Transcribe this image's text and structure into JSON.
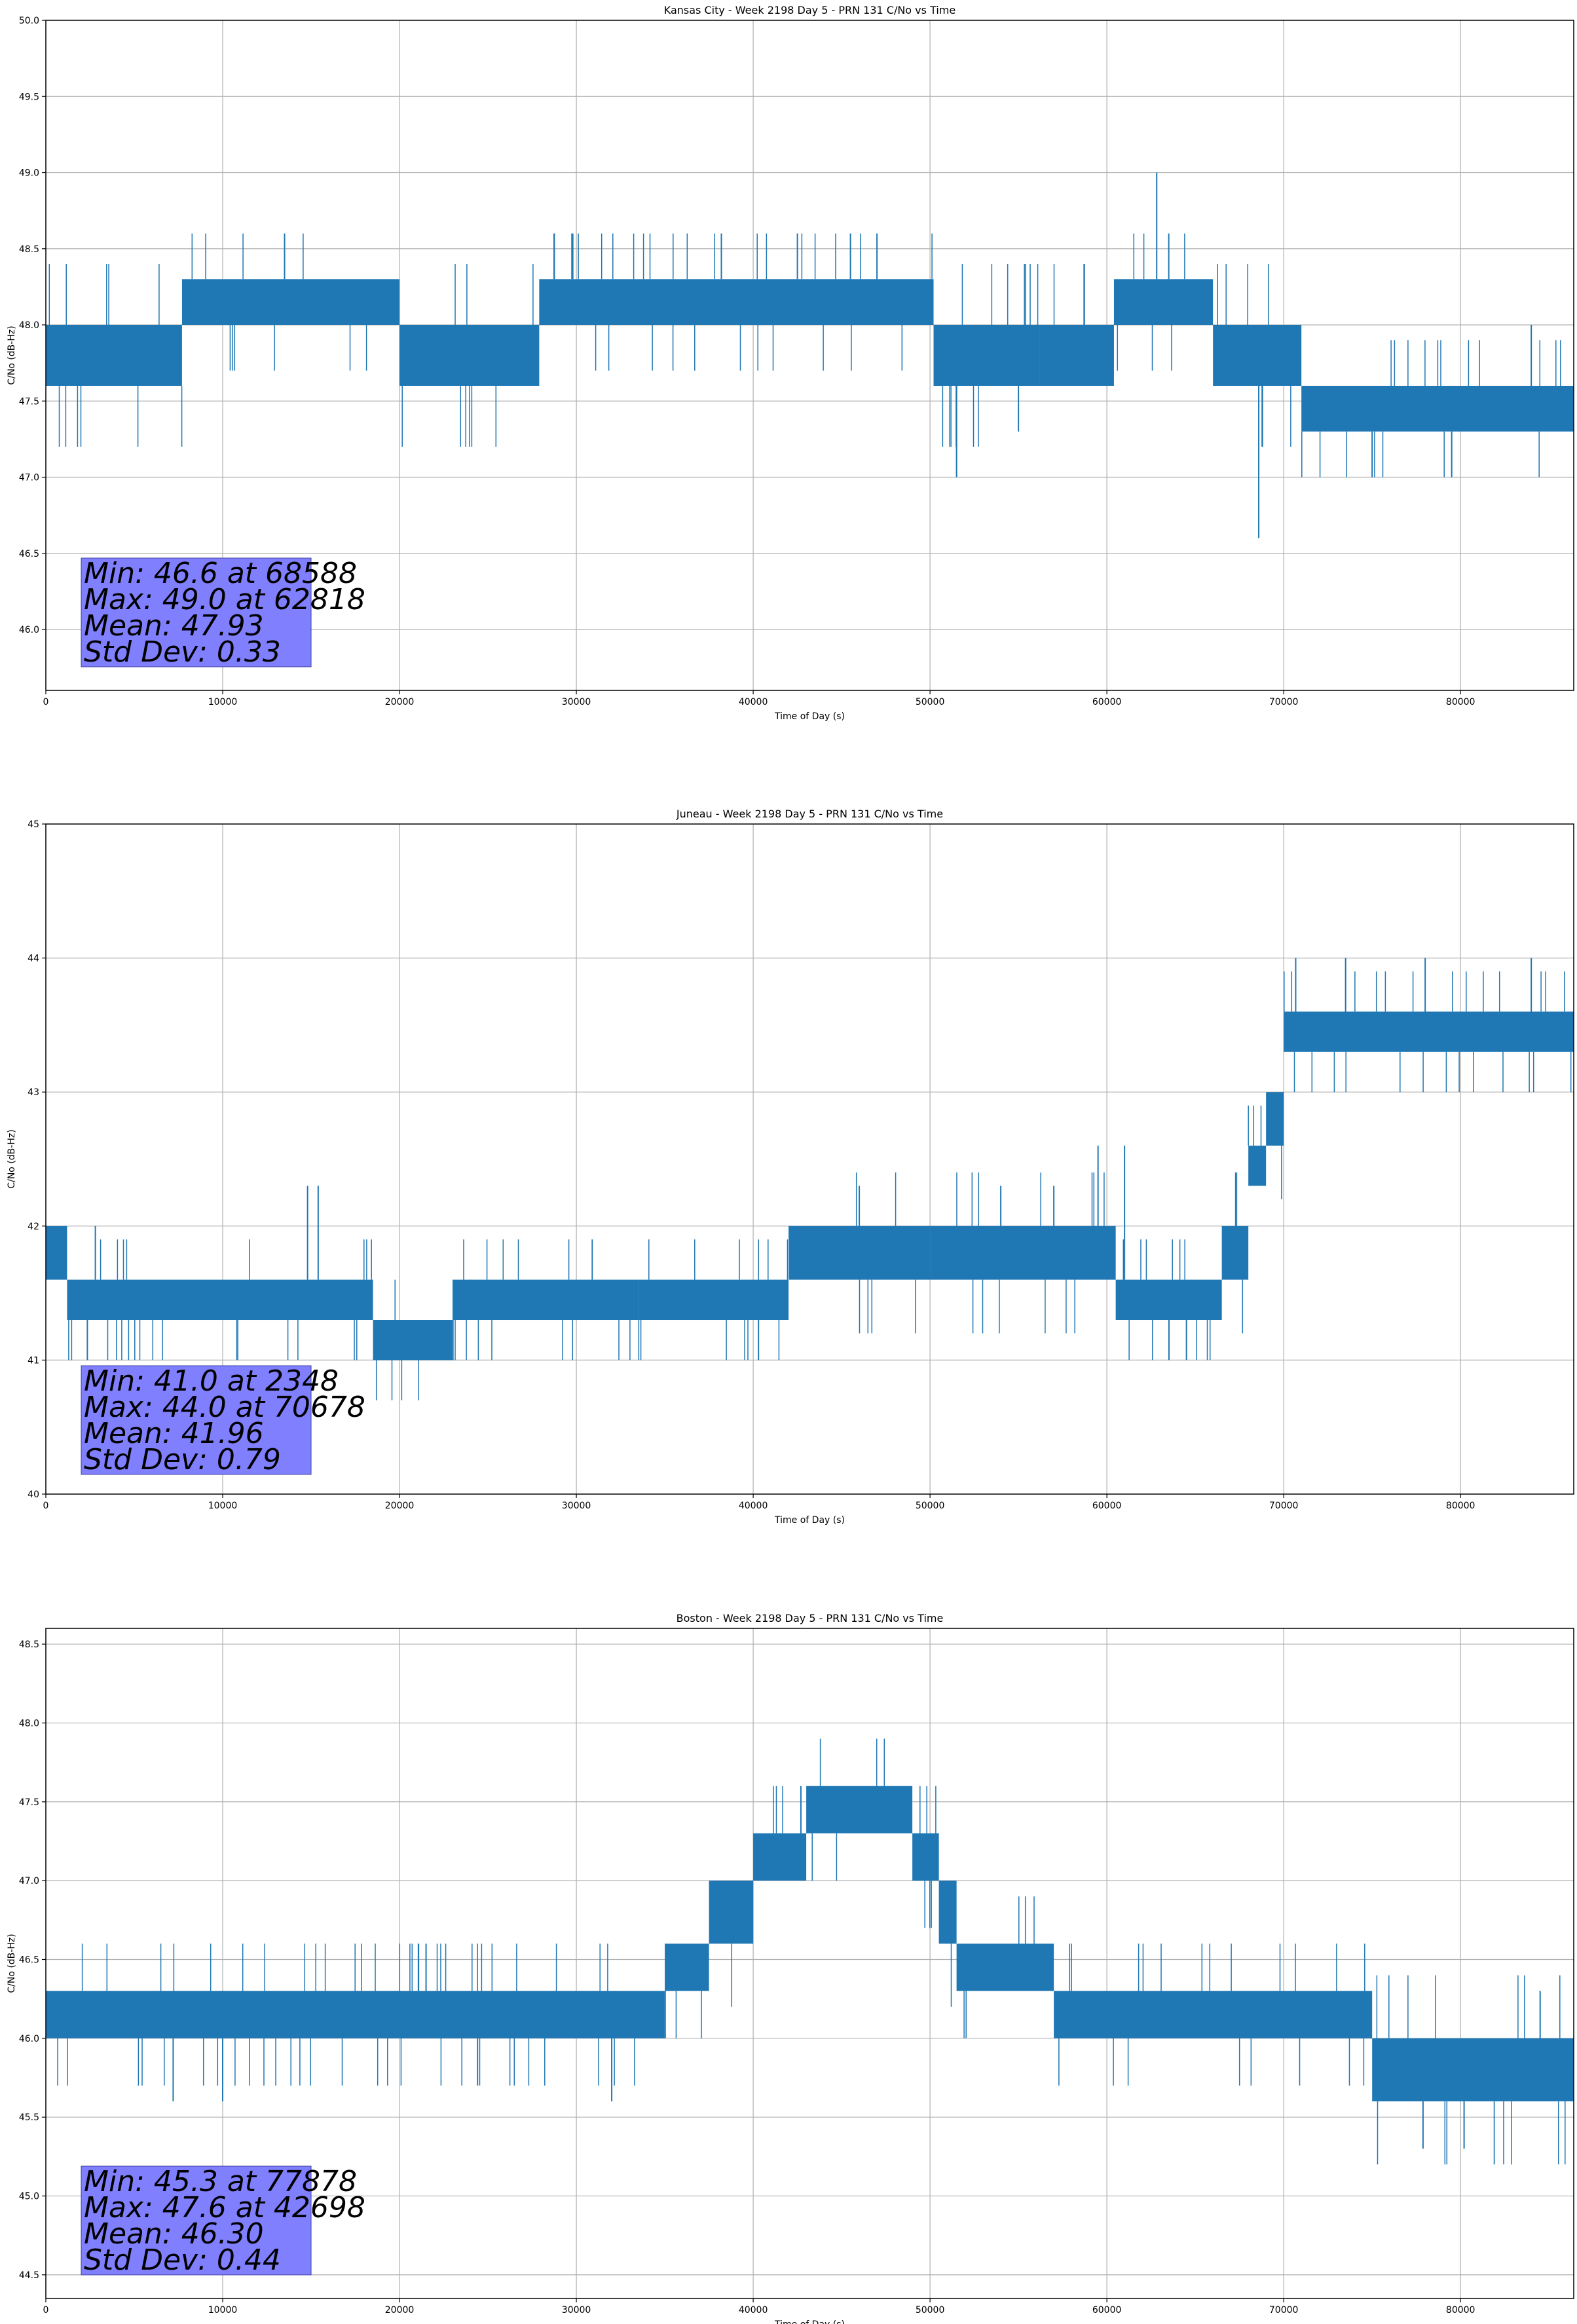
{
  "colors": {
    "series": "#1f77b4",
    "grid": "#b0b0b0",
    "stats_box": "#8080ff",
    "axes": "#000000"
  },
  "chart_data": [
    {
      "type": "line",
      "title": "Kansas City - Week 2198 Day 5 - PRN 131 C/No vs Time",
      "xlabel": "Time of Day (s)",
      "ylabel": "C/No (dB-Hz)",
      "xlim": [
        0,
        86400
      ],
      "ylim": [
        45.6,
        50.0
      ],
      "xticks": [
        0,
        10000,
        20000,
        30000,
        40000,
        50000,
        60000,
        70000,
        80000
      ],
      "xtick_labels": [
        "0",
        "10000",
        "20000",
        "30000",
        "40000",
        "50000",
        "60000",
        "70000",
        "80000"
      ],
      "yticks": [
        46.0,
        46.5,
        47.0,
        47.5,
        48.0,
        48.5,
        49.0,
        49.5,
        50.0
      ],
      "ytick_labels": [
        "46.0",
        "46.5",
        "47.0",
        "47.5",
        "48.0",
        "48.5",
        "49.0",
        "49.5",
        "50.0"
      ],
      "grid": true,
      "stats": [
        "Min: 46.6 at 68588",
        "Max: 49.0 at 62818",
        "Mean: 47.93",
        "Std Dev: 0.33"
      ],
      "band_segments": [
        {
          "x0": 0,
          "x1": 7700,
          "lo": 47.6,
          "hi": 48.0
        },
        {
          "x0": 7700,
          "x1": 20000,
          "lo": 48.0,
          "hi": 48.3
        },
        {
          "x0": 20000,
          "x1": 27900,
          "lo": 47.6,
          "hi": 48.0
        },
        {
          "x0": 27900,
          "x1": 50200,
          "lo": 48.0,
          "hi": 48.3
        },
        {
          "x0": 50200,
          "x1": 56200,
          "lo": 47.6,
          "hi": 48.0
        },
        {
          "x0": 56200,
          "x1": 60400,
          "lo": 47.6,
          "hi": 48.0
        },
        {
          "x0": 60400,
          "x1": 66000,
          "lo": 48.0,
          "hi": 48.3
        },
        {
          "x0": 66000,
          "x1": 71000,
          "lo": 47.6,
          "hi": 48.0
        },
        {
          "x0": 71000,
          "x1": 86400,
          "lo": 47.3,
          "hi": 47.6
        }
      ],
      "spikes": [
        {
          "x": 13500,
          "y": 48.6
        },
        {
          "x": 29800,
          "y": 48.6
        },
        {
          "x": 38200,
          "y": 48.6
        },
        {
          "x": 42500,
          "y": 48.6
        },
        {
          "x": 45500,
          "y": 48.6
        },
        {
          "x": 47000,
          "y": 48.6
        },
        {
          "x": 51500,
          "y": 47.0
        },
        {
          "x": 55000,
          "y": 47.3
        },
        {
          "x": 62818,
          "y": 49.0
        },
        {
          "x": 63500,
          "y": 48.6
        },
        {
          "x": 68588,
          "y": 46.6
        },
        {
          "x": 75000,
          "y": 47.0
        },
        {
          "x": 79500,
          "y": 47.0
        },
        {
          "x": 84000,
          "y": 48.0
        }
      ]
    },
    {
      "type": "line",
      "title": "Juneau - Week 2198 Day 5 - PRN 131 C/No vs Time",
      "xlabel": "Time of Day (s)",
      "ylabel": "C/No (dB-Hz)",
      "xlim": [
        0,
        86400
      ],
      "ylim": [
        40,
        45
      ],
      "xticks": [
        0,
        10000,
        20000,
        30000,
        40000,
        50000,
        60000,
        70000,
        80000
      ],
      "xtick_labels": [
        "0",
        "10000",
        "20000",
        "30000",
        "40000",
        "50000",
        "60000",
        "70000",
        "80000"
      ],
      "yticks": [
        40,
        41,
        42,
        43,
        44,
        45
      ],
      "ytick_labels": [
        "40",
        "41",
        "42",
        "43",
        "44",
        "45"
      ],
      "grid": true,
      "stats": [
        "Min: 41.0 at 2348",
        "Max: 44.0 at 70678",
        "Mean: 41.96",
        "Std Dev: 0.79"
      ],
      "band_segments": [
        {
          "x0": 0,
          "x1": 1200,
          "lo": 41.6,
          "hi": 42.0
        },
        {
          "x0": 1200,
          "x1": 18500,
          "lo": 41.3,
          "hi": 41.6
        },
        {
          "x0": 18500,
          "x1": 23000,
          "lo": 41.0,
          "hi": 41.3
        },
        {
          "x0": 23000,
          "x1": 33500,
          "lo": 41.3,
          "hi": 41.6
        },
        {
          "x0": 33500,
          "x1": 42000,
          "lo": 41.3,
          "hi": 41.6
        },
        {
          "x0": 42000,
          "x1": 50000,
          "lo": 41.6,
          "hi": 42.0
        },
        {
          "x0": 50000,
          "x1": 60500,
          "lo": 41.6,
          "hi": 42.0
        },
        {
          "x0": 60500,
          "x1": 66500,
          "lo": 41.3,
          "hi": 41.6
        },
        {
          "x0": 66500,
          "x1": 68000,
          "lo": 41.6,
          "hi": 42.0
        },
        {
          "x0": 68000,
          "x1": 69000,
          "lo": 42.3,
          "hi": 42.6
        },
        {
          "x0": 69000,
          "x1": 70000,
          "lo": 42.6,
          "hi": 43.0
        },
        {
          "x0": 70000,
          "x1": 86400,
          "lo": 43.3,
          "hi": 43.6
        }
      ],
      "spikes": [
        {
          "x": 2348,
          "y": 41.0
        },
        {
          "x": 2800,
          "y": 42.0
        },
        {
          "x": 14800,
          "y": 42.3
        },
        {
          "x": 15400,
          "y": 42.3
        },
        {
          "x": 24000,
          "y": 41.6
        },
        {
          "x": 40300,
          "y": 41.0
        },
        {
          "x": 46000,
          "y": 42.3
        },
        {
          "x": 54000,
          "y": 42.3
        },
        {
          "x": 57000,
          "y": 42.3
        },
        {
          "x": 59500,
          "y": 42.6
        },
        {
          "x": 61000,
          "y": 42.6
        },
        {
          "x": 64500,
          "y": 41.0
        },
        {
          "x": 70678,
          "y": 44.0
        },
        {
          "x": 73500,
          "y": 44.0
        },
        {
          "x": 78000,
          "y": 44.0
        },
        {
          "x": 84000,
          "y": 44.0
        }
      ]
    },
    {
      "type": "line",
      "title": "Boston - Week 2198 Day 5 - PRN 131 C/No vs Time",
      "xlabel": "Time of Day (s)",
      "ylabel": "C/No (dB-Hz)",
      "xlim": [
        0,
        86400
      ],
      "ylim": [
        44.35,
        48.6
      ],
      "xticks": [
        0,
        10000,
        20000,
        30000,
        40000,
        50000,
        60000,
        70000,
        80000
      ],
      "xtick_labels": [
        "0",
        "10000",
        "20000",
        "30000",
        "40000",
        "50000",
        "60000",
        "70000",
        "80000"
      ],
      "yticks": [
        44.5,
        45.0,
        45.5,
        46.0,
        46.5,
        47.0,
        47.5,
        48.0,
        48.5
      ],
      "ytick_labels": [
        "44.5",
        "45.0",
        "45.5",
        "46.0",
        "46.5",
        "47.0",
        "47.5",
        "48.0",
        "48.5"
      ],
      "grid": true,
      "stats": [
        "Min: 45.3 at 77878",
        "Max: 47.6 at 42698",
        "Mean: 46.30",
        "Std Dev: 0.44"
      ],
      "band_segments": [
        {
          "x0": 0,
          "x1": 35000,
          "lo": 46.0,
          "hi": 46.3
        },
        {
          "x0": 35000,
          "x1": 37500,
          "lo": 46.3,
          "hi": 46.6
        },
        {
          "x0": 37500,
          "x1": 40000,
          "lo": 46.6,
          "hi": 47.0
        },
        {
          "x0": 40000,
          "x1": 43000,
          "lo": 47.0,
          "hi": 47.3
        },
        {
          "x0": 43000,
          "x1": 49000,
          "lo": 47.3,
          "hi": 47.6
        },
        {
          "x0": 49000,
          "x1": 50500,
          "lo": 47.0,
          "hi": 47.3
        },
        {
          "x0": 50500,
          "x1": 51500,
          "lo": 46.6,
          "hi": 47.0
        },
        {
          "x0": 51500,
          "x1": 57000,
          "lo": 46.3,
          "hi": 46.6
        },
        {
          "x0": 57000,
          "x1": 75000,
          "lo": 46.0,
          "hi": 46.3
        },
        {
          "x0": 75000,
          "x1": 86400,
          "lo": 45.6,
          "hi": 46.0
        }
      ],
      "spikes": [
        {
          "x": 7200,
          "y": 45.6
        },
        {
          "x": 10000,
          "y": 45.6
        },
        {
          "x": 21500,
          "y": 46.6
        },
        {
          "x": 32000,
          "y": 45.6
        },
        {
          "x": 42698,
          "y": 47.6
        },
        {
          "x": 77878,
          "y": 45.3
        },
        {
          "x": 80200,
          "y": 45.3
        },
        {
          "x": 84500,
          "y": 46.3
        }
      ]
    }
  ]
}
